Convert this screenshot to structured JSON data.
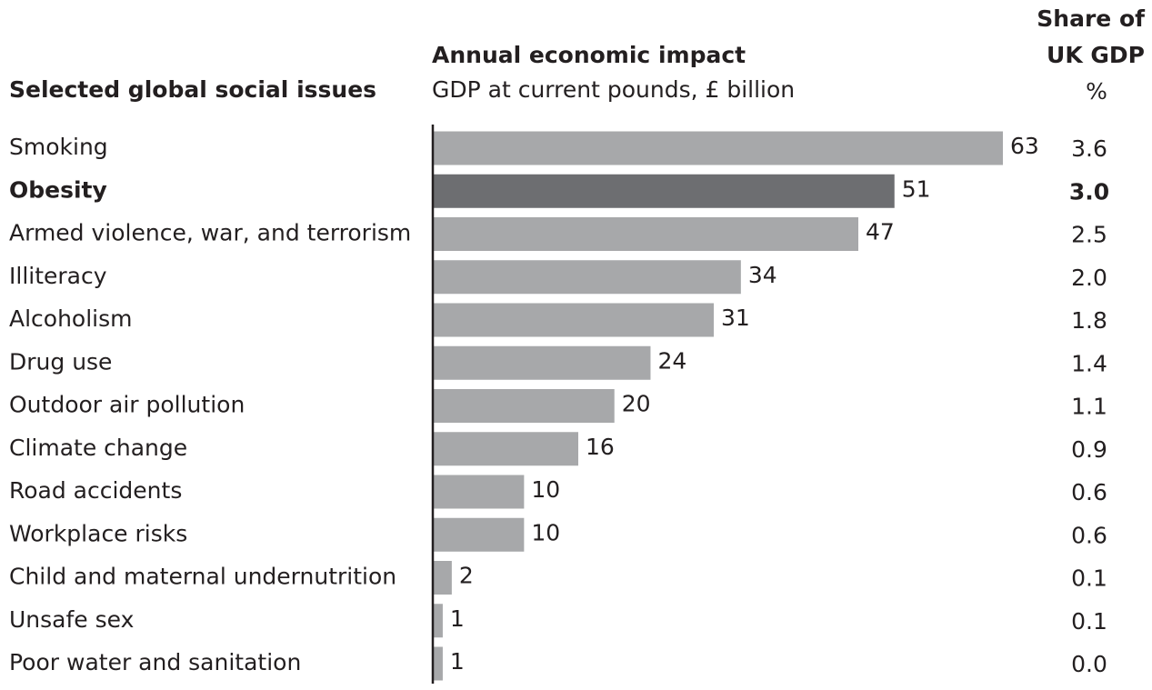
{
  "headers": {
    "issues": "Selected global social issues",
    "impact_title": "Annual economic impact",
    "impact_subtitle": "GDP at current pounds, £ billion",
    "share_line1": "Share of",
    "share_line2": "UK GDP",
    "share_unit": "%"
  },
  "colors": {
    "bar": "#a7a8aa",
    "highlight_bar": "#6d6e71",
    "text": "#231f20"
  },
  "chart_data": {
    "type": "bar",
    "orientation": "horizontal",
    "title": "Annual economic impact",
    "subtitle": "GDP at current pounds, £ billion",
    "categories": [
      "Smoking",
      "Obesity",
      "Armed violence, war, and terrorism",
      "Illiteracy",
      "Alcoholism",
      "Drug use",
      "Outdoor air pollution",
      "Climate change",
      "Road accidents",
      "Workplace risks",
      "Child and maternal undernutrition",
      "Unsafe sex",
      "Poor water and sanitation"
    ],
    "values": [
      63,
      51,
      47,
      34,
      31,
      24,
      20,
      16,
      10,
      10,
      2,
      1,
      1
    ],
    "value_labels": [
      "63",
      "51",
      "47",
      "34",
      "31",
      "24",
      "20",
      "16",
      "10",
      "10",
      "2",
      "1",
      "1"
    ],
    "share_of_uk_gdp": [
      "3.6",
      "3.0",
      "2.5",
      "2.0",
      "1.8",
      "1.4",
      "1.1",
      "0.9",
      "0.6",
      "0.6",
      "0.1",
      "0.1",
      "0.0"
    ],
    "highlight": "Obesity",
    "xlim": [
      0,
      63
    ],
    "grid": false,
    "legend": "none"
  }
}
